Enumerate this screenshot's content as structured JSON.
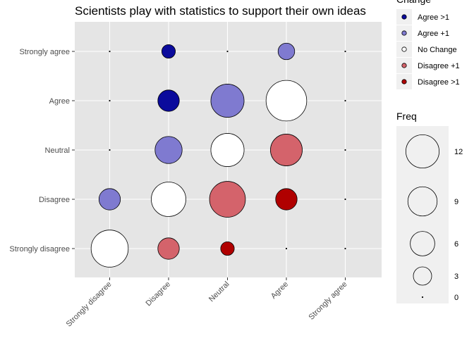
{
  "chart_data": {
    "type": "scatter",
    "title": "Scientists play with statistics to support their own ideas",
    "xlabel": "",
    "ylabel": "",
    "x_categories": [
      "Strongly disagree",
      "Disagree",
      "Neutral",
      "Agree",
      "Strongly agree"
    ],
    "y_categories": [
      "Strongly disagree",
      "Disagree",
      "Neutral",
      "Agree",
      "Strongly agree"
    ],
    "grid": true,
    "points": [
      {
        "x": "Strongly disagree",
        "y": "Strongly agree",
        "freq": 0,
        "change": "No Change"
      },
      {
        "x": "Disagree",
        "y": "Strongly agree",
        "freq": 2,
        "change": "Agree >1"
      },
      {
        "x": "Neutral",
        "y": "Strongly agree",
        "freq": 0,
        "change": "No Change"
      },
      {
        "x": "Agree",
        "y": "Strongly agree",
        "freq": 3,
        "change": "Agree +1"
      },
      {
        "x": "Strongly agree",
        "y": "Strongly agree",
        "freq": 0,
        "change": "No Change"
      },
      {
        "x": "Strongly disagree",
        "y": "Agree",
        "freq": 0,
        "change": "No Change"
      },
      {
        "x": "Disagree",
        "y": "Agree",
        "freq": 5,
        "change": "Agree >1"
      },
      {
        "x": "Neutral",
        "y": "Agree",
        "freq": 12,
        "change": "Agree +1"
      },
      {
        "x": "Agree",
        "y": "Agree",
        "freq": 18,
        "change": "No Change"
      },
      {
        "x": "Strongly agree",
        "y": "Agree",
        "freq": 0,
        "change": "No Change"
      },
      {
        "x": "Strongly disagree",
        "y": "Neutral",
        "freq": 0,
        "change": "No Change"
      },
      {
        "x": "Disagree",
        "y": "Neutral",
        "freq": 8,
        "change": "Agree +1"
      },
      {
        "x": "Neutral",
        "y": "Neutral",
        "freq": 12,
        "change": "No Change"
      },
      {
        "x": "Agree",
        "y": "Neutral",
        "freq": 11,
        "change": "Disagree +1"
      },
      {
        "x": "Strongly agree",
        "y": "Neutral",
        "freq": 0,
        "change": "No Change"
      },
      {
        "x": "Strongly disagree",
        "y": "Disagree",
        "freq": 5,
        "change": "Agree +1"
      },
      {
        "x": "Disagree",
        "y": "Disagree",
        "freq": 13,
        "change": "No Change"
      },
      {
        "x": "Neutral",
        "y": "Disagree",
        "freq": 14,
        "change": "Disagree +1"
      },
      {
        "x": "Agree",
        "y": "Disagree",
        "freq": 5,
        "change": "Disagree >1"
      },
      {
        "x": "Strongly agree",
        "y": "Disagree",
        "freq": 0,
        "change": "No Change"
      },
      {
        "x": "Strongly disagree",
        "y": "Strongly disagree",
        "freq": 15,
        "change": "No Change"
      },
      {
        "x": "Disagree",
        "y": "Strongly disagree",
        "freq": 5,
        "change": "Disagree +1"
      },
      {
        "x": "Neutral",
        "y": "Strongly disagree",
        "freq": 2,
        "change": "Disagree >1"
      },
      {
        "x": "Agree",
        "y": "Strongly disagree",
        "freq": 0,
        "change": "No Change"
      },
      {
        "x": "Strongly agree",
        "y": "Strongly disagree",
        "freq": 0,
        "change": "No Change"
      }
    ],
    "legend_change": {
      "title": "Change",
      "items": [
        {
          "label": "Agree >1",
          "color": "#0b0b9c"
        },
        {
          "label": "Agree +1",
          "color": "#7f7ad0"
        },
        {
          "label": "No Change",
          "color": "#ffffff"
        },
        {
          "label": "Disagree +1",
          "color": "#d4636b"
        },
        {
          "label": "Disagree >1",
          "color": "#b00000"
        }
      ]
    },
    "legend_freq": {
      "title": "Freq",
      "items": [
        12,
        9,
        6,
        3,
        0
      ]
    },
    "colors": {
      "panel_background": "#e5e5e5",
      "gridline": "#ffffff",
      "legend_key_background": "#f0f0f0"
    }
  }
}
